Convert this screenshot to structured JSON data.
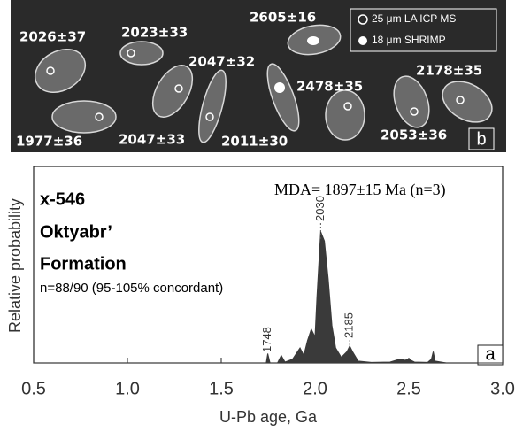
{
  "grain_image": {
    "labels": [
      "2026±37",
      "2023±33",
      "2605±16",
      "2047±32",
      "2478±35",
      "2178±35",
      "1977±36",
      "2047±33",
      "2011±30",
      "2053±36"
    ],
    "legend": [
      "25 μm LA ICP MS",
      "18 μm SHRIMP"
    ],
    "panel_label": "b"
  },
  "chart_data": {
    "type": "area",
    "annotations": [
      "x-546",
      "Oktyabr’",
      "Formation",
      "n=88/90 (95-105% concordant)",
      "MDA= 1897±15 Ma (n=3)"
    ],
    "panel_label": "a",
    "x_label": "U-Pb age, Ga",
    "y_label": "Relative probability",
    "xlim": [
      0.5,
      3.0
    ],
    "xticks": [
      0.5,
      {
        "value": 1.0,
        "label": "1.0"
      },
      1.5,
      {
        "value": 2.0,
        "label": "2.0"
      },
      2.5,
      {
        "value": 3.0,
        "label": "3.0"
      }
    ],
    "ylim": [
      0,
      100
    ],
    "color": "#3a3a3a",
    "x": [
      0.5,
      1.7,
      1.74,
      1.748,
      1.76,
      1.8,
      1.82,
      1.84,
      1.88,
      1.92,
      1.94,
      1.96,
      1.98,
      2.0,
      2.01,
      2.03,
      2.05,
      2.07,
      2.09,
      2.11,
      2.14,
      2.17,
      2.185,
      2.2,
      2.23,
      2.3,
      2.4,
      2.45,
      2.48,
      2.5,
      2.53,
      2.6,
      2.62,
      2.63,
      2.64,
      2.7,
      3.0
    ],
    "values": [
      0,
      0,
      0,
      5,
      0,
      0,
      4,
      0.5,
      2,
      8,
      4,
      12,
      18,
      14,
      35,
      70,
      65,
      45,
      20,
      8,
      3,
      6,
      9,
      6,
      1,
      0.3,
      0.5,
      2,
      1.5,
      2,
      0.5,
      0.3,
      2,
      6,
      1,
      0,
      0
    ],
    "peak_labels": [
      {
        "x": 1.748,
        "label": "1748"
      },
      {
        "x": 2.03,
        "label": "2030"
      },
      {
        "x": 2.185,
        "label": "2185"
      }
    ]
  }
}
